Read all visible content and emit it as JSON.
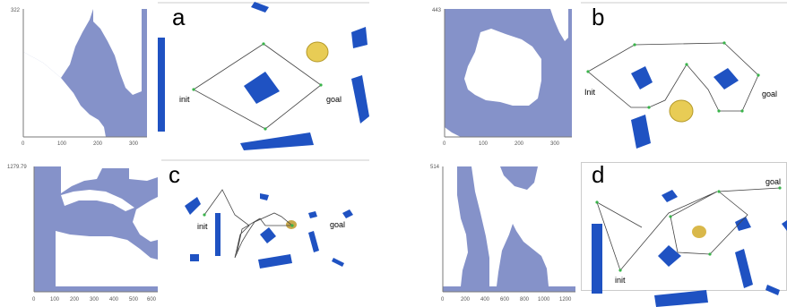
{
  "colors": {
    "obstacle_fill": "#8592c9",
    "axis": "#7a7a7a",
    "shape_blue": "#1f52c2",
    "disc_yellow": "#e8cc55",
    "path_line": "#444444",
    "waypoint": "#39b34a"
  },
  "panels": [
    {
      "id": "a",
      "letter": "a",
      "plot_top_label": "322",
      "plot_ticks": [
        "0",
        "100",
        "200",
        "300"
      ],
      "init_label": "init",
      "goal_label": "goal"
    },
    {
      "id": "b",
      "letter": "b",
      "plot_top_label": "443",
      "plot_ticks": [
        "0",
        "100",
        "200",
        "300"
      ],
      "init_label": "Init",
      "goal_label": "goal"
    },
    {
      "id": "c",
      "letter": "c",
      "plot_top_label": "1279.79",
      "plot_ticks": [
        "0",
        "100",
        "200",
        "300",
        "400",
        "500",
        "600"
      ],
      "init_label": "init",
      "goal_label": "goal"
    },
    {
      "id": "d",
      "letter": "d",
      "plot_top_label": "514",
      "plot_ticks": [
        "0",
        "200",
        "400",
        "600",
        "800",
        "1000",
        "1200"
      ],
      "init_label": "init",
      "goal_label": "goal"
    }
  ]
}
